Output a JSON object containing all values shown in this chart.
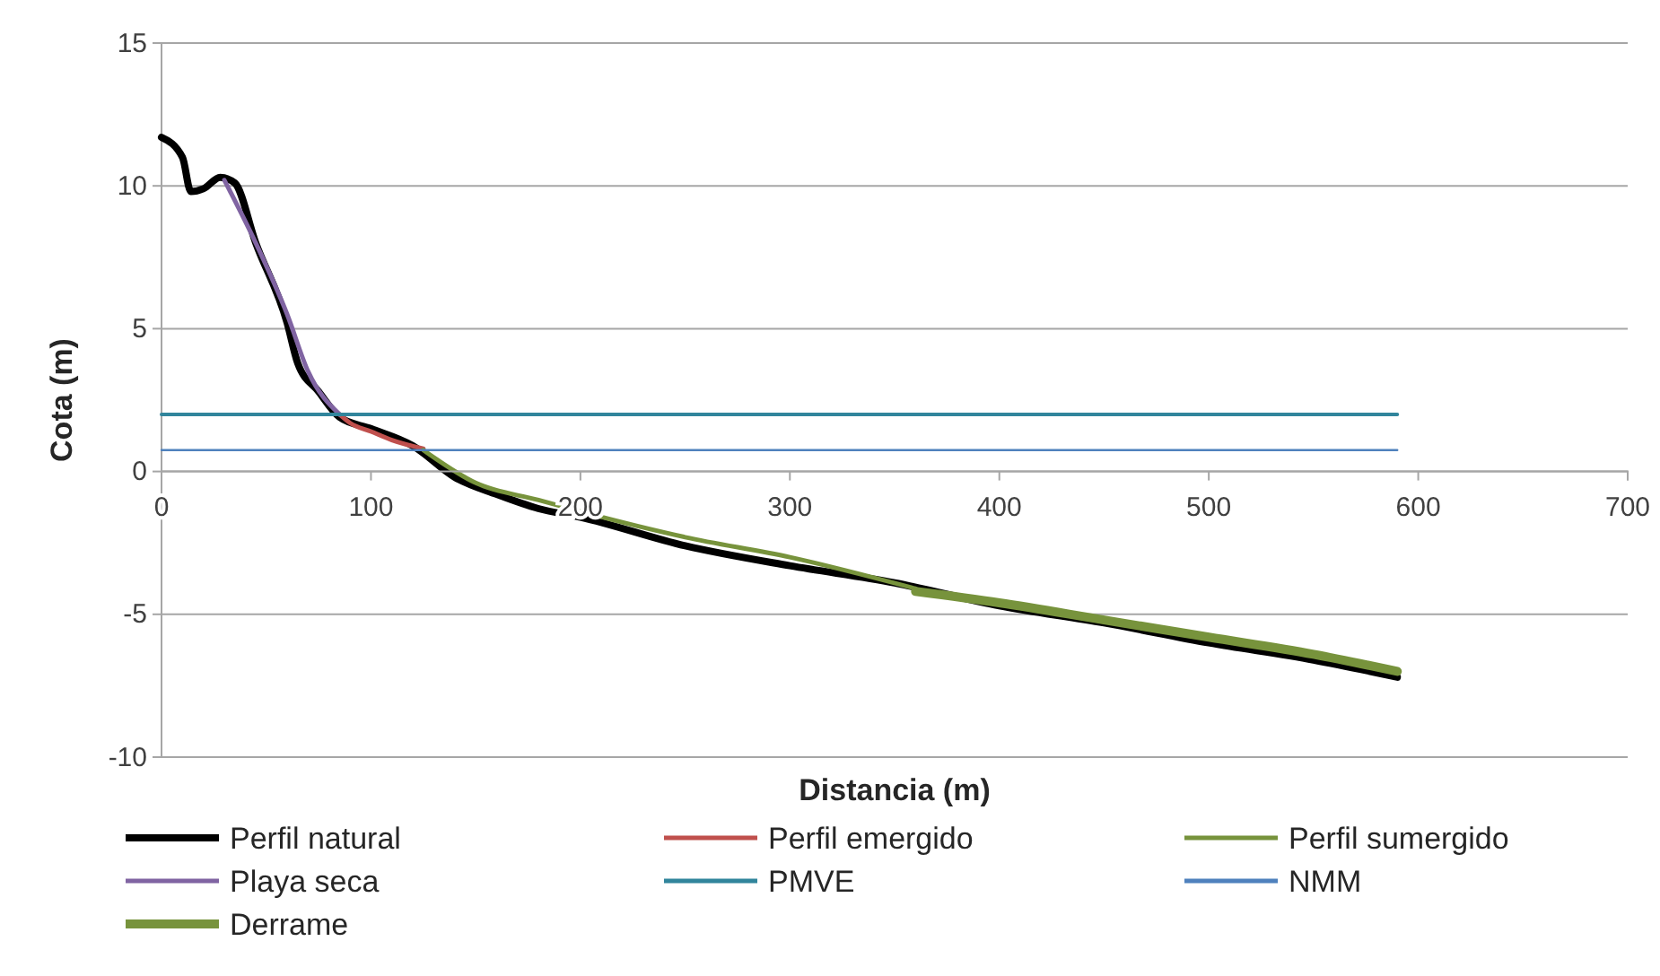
{
  "chart_data": {
    "type": "line",
    "xlabel": "Distancia (m)",
    "ylabel": "Cota (m)",
    "xlim": [
      0,
      700
    ],
    "xticks": [
      0,
      100,
      200,
      300,
      400,
      500,
      600,
      700
    ],
    "ylim": [
      -10,
      15
    ],
    "yticks": [
      -10,
      -5,
      0,
      5,
      10,
      15
    ],
    "grid": "y",
    "legend": "bottom",
    "line_style": "solid",
    "marker": "none",
    "series": [
      {
        "name": "Perfil natural",
        "color": "#000000",
        "x": [
          0,
          10,
          14,
          20,
          28,
          35,
          45,
          60,
          65,
          75,
          85,
          100,
          120,
          140,
          160,
          180,
          200,
          250,
          300,
          350,
          400,
          450,
          500,
          550,
          590
        ],
        "values": [
          11.7,
          11,
          9.8,
          9.9,
          10.3,
          10.1,
          8,
          5.2,
          3.8,
          2.8,
          1.9,
          1.5,
          0.9,
          -0.2,
          -0.8,
          -1.3,
          -1.6,
          -2.6,
          -3.3,
          -3.9,
          -4.7,
          -5.3,
          -6,
          -6.6,
          -7.2
        ]
      },
      {
        "name": "Perfil emergido",
        "color": "#c0504d",
        "x": [
          85,
          90,
          100,
          110,
          125
        ],
        "values": [
          2,
          1.7,
          1.4,
          1.1,
          0.8
        ]
      },
      {
        "name": "Perfil sumergido",
        "color": "#77933c",
        "x": [
          125,
          150,
          180,
          200,
          250,
          300,
          360
        ],
        "values": [
          0.75,
          -0.4,
          -1,
          -1.4,
          -2.3,
          -3,
          -4.1
        ]
      },
      {
        "name": "Playa seca",
        "color": "#8064a2",
        "x": [
          30,
          45,
          60,
          70,
          85
        ],
        "values": [
          10.2,
          8,
          5.5,
          3.5,
          2
        ]
      },
      {
        "name": "PMVE",
        "color": "#31859c",
        "x": [
          0,
          590
        ],
        "values": [
          2,
          2
        ]
      },
      {
        "name": "NMM",
        "color": "#4f81bd",
        "x": [
          0,
          590
        ],
        "values": [
          0.75,
          0.75
        ]
      },
      {
        "name": "Derrame",
        "color": "#77933c",
        "x": [
          360,
          400,
          450,
          500,
          550,
          590
        ],
        "values": [
          -4.2,
          -4.6,
          -5.2,
          -5.8,
          -6.4,
          -7
        ]
      }
    ]
  }
}
